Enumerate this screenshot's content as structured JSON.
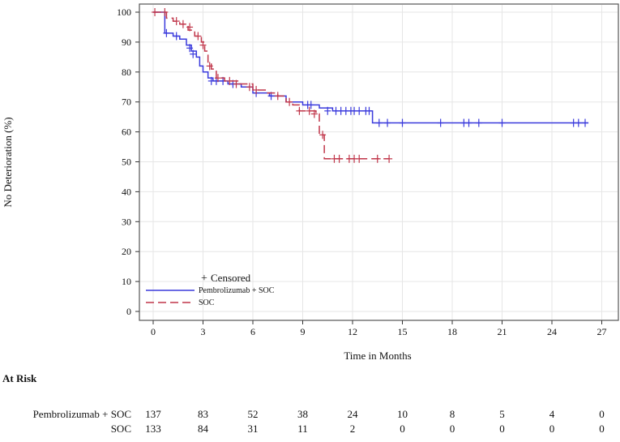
{
  "chart_data": {
    "type": "line",
    "subtype": "kaplan-meier",
    "title": "",
    "xlabel": "Time in Months",
    "ylabel": "No Deterioration (%)",
    "xlim": [
      -1,
      28
    ],
    "ylim": [
      0,
      102
    ],
    "xticks": [
      0,
      3,
      6,
      9,
      12,
      15,
      18,
      21,
      24,
      27
    ],
    "yticks": [
      0,
      10,
      20,
      30,
      40,
      50,
      60,
      70,
      80,
      90,
      100
    ],
    "grid": true,
    "legend": {
      "placement": "bottom-left",
      "censored_label": "Censored",
      "censored_symbol": "+"
    },
    "series": [
      {
        "name": "Pembrolizumab + SOC",
        "color": "#3a3adc",
        "dash": "solid",
        "steps": [
          [
            0,
            100
          ],
          [
            0.7,
            93
          ],
          [
            1.2,
            92
          ],
          [
            1.6,
            91
          ],
          [
            2.0,
            89
          ],
          [
            2.3,
            87
          ],
          [
            2.6,
            85
          ],
          [
            2.8,
            82
          ],
          [
            3.0,
            80
          ],
          [
            3.3,
            78
          ],
          [
            3.6,
            77
          ],
          [
            4.5,
            76
          ],
          [
            5.3,
            75
          ],
          [
            6.0,
            73
          ],
          [
            7.0,
            72
          ],
          [
            8.0,
            70
          ],
          [
            9.0,
            69
          ],
          [
            10.0,
            68
          ],
          [
            10.8,
            67
          ],
          [
            13.2,
            63
          ],
          [
            26.2,
            63
          ]
        ],
        "censored": [
          [
            0.8,
            93
          ],
          [
            1.4,
            92
          ],
          [
            2.2,
            88
          ],
          [
            2.4,
            86
          ],
          [
            3.5,
            77
          ],
          [
            3.8,
            77
          ],
          [
            4.2,
            77
          ],
          [
            4.8,
            76
          ],
          [
            6.2,
            73
          ],
          [
            7.1,
            72
          ],
          [
            9.3,
            69
          ],
          [
            9.5,
            69
          ],
          [
            10.5,
            67
          ],
          [
            11.0,
            67
          ],
          [
            11.3,
            67
          ],
          [
            11.6,
            67
          ],
          [
            11.9,
            67
          ],
          [
            12.1,
            67
          ],
          [
            12.4,
            67
          ],
          [
            12.8,
            67
          ],
          [
            13.0,
            67
          ],
          [
            13.6,
            63
          ],
          [
            14.1,
            63
          ],
          [
            15.0,
            63
          ],
          [
            17.3,
            63
          ],
          [
            18.7,
            63
          ],
          [
            19.0,
            63
          ],
          [
            19.6,
            63
          ],
          [
            21.0,
            63
          ],
          [
            25.3,
            63
          ],
          [
            25.6,
            63
          ],
          [
            26.0,
            63
          ]
        ]
      },
      {
        "name": "SOC",
        "color": "#c0364a",
        "dash": "dashed",
        "steps": [
          [
            0,
            100
          ],
          [
            0.8,
            98
          ],
          [
            1.2,
            97
          ],
          [
            1.6,
            96
          ],
          [
            2.1,
            94
          ],
          [
            2.5,
            92
          ],
          [
            2.9,
            90
          ],
          [
            3.1,
            87
          ],
          [
            3.3,
            83
          ],
          [
            3.5,
            81
          ],
          [
            3.8,
            78
          ],
          [
            4.3,
            77
          ],
          [
            5.2,
            76
          ],
          [
            6.0,
            74
          ],
          [
            6.8,
            73
          ],
          [
            7.5,
            72
          ],
          [
            8.0,
            70
          ],
          [
            8.4,
            69
          ],
          [
            8.8,
            67
          ],
          [
            9.8,
            66
          ],
          [
            10.0,
            59
          ],
          [
            10.3,
            51
          ],
          [
            14.2,
            51
          ]
        ],
        "censored": [
          [
            0.1,
            100
          ],
          [
            0.7,
            100
          ],
          [
            1.4,
            97
          ],
          [
            1.8,
            96
          ],
          [
            2.2,
            95
          ],
          [
            2.7,
            92
          ],
          [
            3.0,
            89
          ],
          [
            3.4,
            82
          ],
          [
            3.9,
            78
          ],
          [
            4.6,
            77
          ],
          [
            5.0,
            76
          ],
          [
            5.8,
            75
          ],
          [
            6.2,
            74
          ],
          [
            7.5,
            72
          ],
          [
            8.2,
            70
          ],
          [
            8.8,
            67
          ],
          [
            9.4,
            67
          ],
          [
            9.7,
            66
          ],
          [
            10.2,
            59
          ],
          [
            10.9,
            51
          ],
          [
            11.2,
            51
          ],
          [
            11.8,
            51
          ],
          [
            12.1,
            51
          ],
          [
            12.4,
            51
          ],
          [
            13.5,
            51
          ],
          [
            14.2,
            51
          ]
        ]
      }
    ],
    "at_risk": {
      "title": "At Risk",
      "times": [
        0,
        3,
        6,
        9,
        12,
        15,
        18,
        21,
        24,
        27
      ],
      "rows": [
        {
          "label": "Pembrolizumab + SOC",
          "values": [
            137,
            83,
            52,
            38,
            24,
            10,
            8,
            5,
            4,
            0
          ]
        },
        {
          "label": "SOC",
          "values": [
            133,
            84,
            31,
            11,
            2,
            0,
            0,
            0,
            0,
            0
          ]
        }
      ]
    }
  }
}
